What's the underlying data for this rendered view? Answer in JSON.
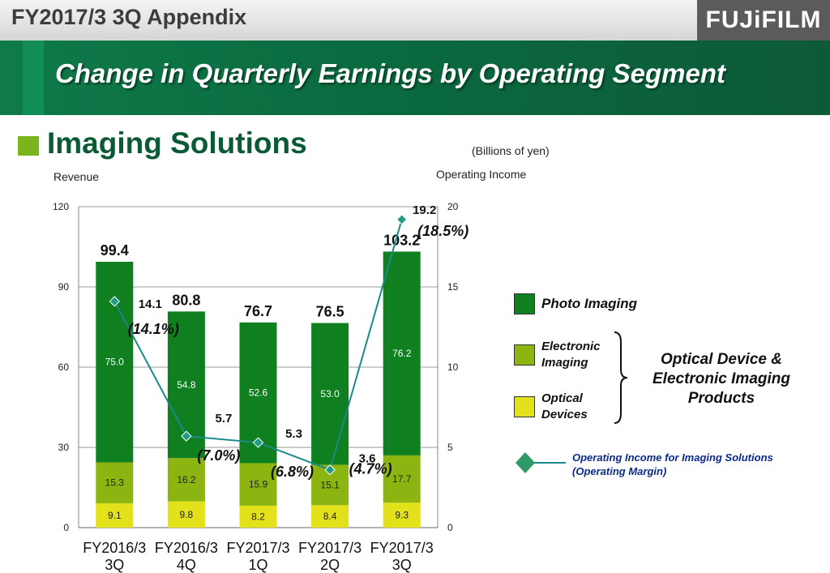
{
  "header": {
    "appendix": "FY2017/3 3Q Appendix",
    "logo": "FUJiFILM"
  },
  "banner": {
    "title": "Change in Quarterly Earnings by Operating Segment"
  },
  "section": {
    "title": "Imaging Solutions"
  },
  "units": "(Billions of yen)",
  "legend": {
    "photo": "Photo Imaging",
    "electronic": "Electronic Imaging",
    "optical": "Optical Devices",
    "group": "Optical Device & Electronic Imaging Products",
    "oi": "Operating Income for Imaging Solutions (Operating Margin)"
  },
  "colors": {
    "photo": "#0f7f1f",
    "electronic": "#8cb512",
    "optical": "#e3e21a",
    "oi_line": "#1a8a8a",
    "oi_marker": "#1f9a86"
  },
  "chart_data": {
    "type": "bar",
    "stacked": true,
    "categories": [
      [
        "FY2016/3",
        "3Q"
      ],
      [
        "FY2016/3",
        "4Q"
      ],
      [
        "FY2017/3",
        "1Q"
      ],
      [
        "FY2017/3",
        "2Q"
      ],
      [
        "FY2017/3",
        "3Q"
      ]
    ],
    "series": [
      {
        "name": "Optical Devices",
        "values": [
          9.1,
          9.8,
          8.2,
          8.4,
          9.3
        ]
      },
      {
        "name": "Electronic Imaging",
        "values": [
          15.3,
          16.2,
          15.9,
          15.1,
          17.7
        ]
      },
      {
        "name": "Photo Imaging",
        "values": [
          75.0,
          54.8,
          52.6,
          53.0,
          76.2
        ]
      }
    ],
    "totals": [
      99.4,
      80.8,
      76.7,
      76.5,
      103.2
    ],
    "totals_labels": [
      "99.4",
      "80.8",
      "76.7",
      "76.5",
      "103.2"
    ],
    "line": {
      "name": "Operating Income for Imaging Solutions (Operating Margin)",
      "values": [
        14.1,
        5.7,
        5.3,
        3.6,
        19.2
      ],
      "value_labels": [
        "14.1",
        "5.7",
        "5.3",
        "3.6",
        "19.2"
      ],
      "margins": [
        "(14.1%)",
        "(7.0%)",
        "(6.8%)",
        "(4.7%)",
        "(18.5%)"
      ]
    },
    "ylabel": "Revenue",
    "y2label": "Operating Income",
    "ylim": [
      0,
      120
    ],
    "y2lim": [
      0,
      20
    ],
    "yticks": [
      0,
      30,
      60,
      90,
      120
    ],
    "y2ticks": [
      0,
      5,
      10,
      15,
      20
    ],
    "grid": true
  }
}
